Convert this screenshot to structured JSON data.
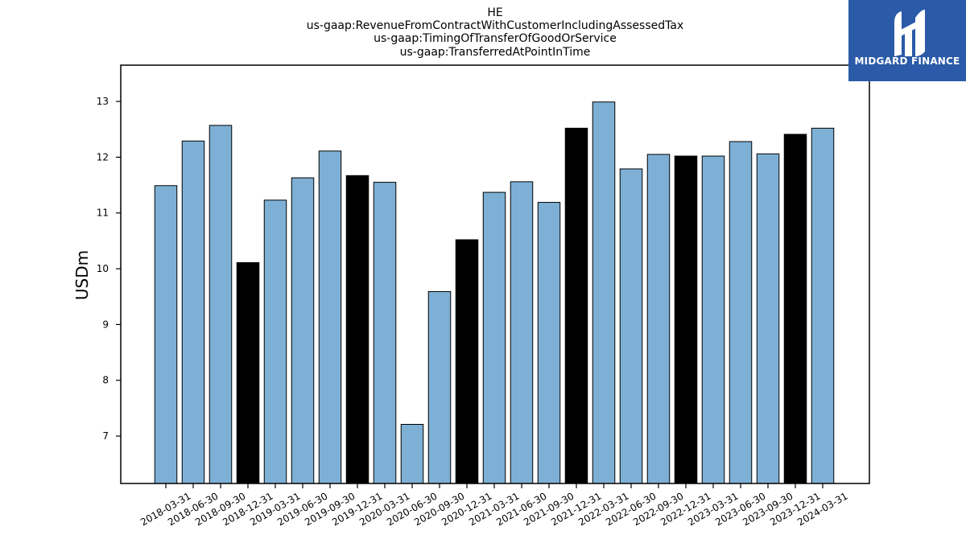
{
  "chart_data": {
    "type": "bar",
    "title_lines": [
      "HE",
      "us-gaap:RevenueFromContractWithCustomerIncludingAssessedTax",
      "us-gaap:TimingOfTransferOfGoodOrService",
      "us-gaap:TransferredAtPointInTime"
    ],
    "xlabel": "",
    "ylabel": "USDm",
    "ylim": [
      6.15,
      13.65
    ],
    "yticks": [
      7,
      8,
      9,
      10,
      11,
      12,
      13
    ],
    "grid": false,
    "categories": [
      "2018-03-31",
      "2018-06-30",
      "2018-09-30",
      "2018-12-31",
      "2019-03-31",
      "2019-06-30",
      "2019-09-30",
      "2019-12-31",
      "2020-03-31",
      "2020-06-30",
      "2020-09-30",
      "2020-12-31",
      "2021-03-31",
      "2021-06-30",
      "2021-09-30",
      "2021-12-31",
      "2022-03-31",
      "2022-06-30",
      "2022-09-30",
      "2022-12-31",
      "2023-03-31",
      "2023-06-30",
      "2023-09-30",
      "2023-12-31",
      "2024-03-31"
    ],
    "values": [
      11.49,
      12.29,
      12.57,
      10.11,
      11.23,
      11.63,
      12.11,
      11.67,
      11.55,
      7.21,
      9.59,
      10.52,
      11.37,
      11.56,
      11.19,
      12.52,
      12.99,
      11.79,
      12.05,
      12.02,
      12.02,
      12.28,
      12.06,
      12.41,
      12.52
    ],
    "colors": {
      "quarter": "#7eb0d5",
      "year_end": "#000000",
      "edge": "#000000"
    }
  },
  "logo": {
    "text": "MIDGARD FINANCE",
    "background": "#2a5aa8"
  }
}
